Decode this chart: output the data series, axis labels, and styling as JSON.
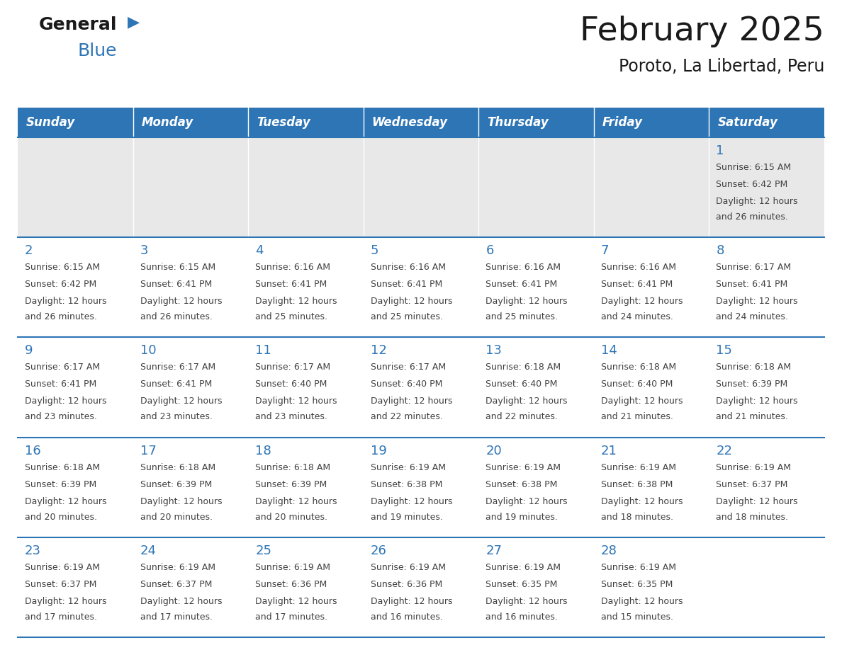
{
  "title": "February 2025",
  "subtitle": "Poroto, La Libertad, Peru",
  "header_bg": "#2E75B6",
  "header_text_color": "#FFFFFF",
  "day_names": [
    "Sunday",
    "Monday",
    "Tuesday",
    "Wednesday",
    "Thursday",
    "Friday",
    "Saturday"
  ],
  "row1_bg": "#E8E8E8",
  "row_bg": "#FFFFFF",
  "separator_color": "#2E75B6",
  "number_color": "#2E75B6",
  "text_color": "#404040",
  "logo_text1": "General",
  "logo_text2": "Blue",
  "logo_color1": "#1A1A1A",
  "logo_color2": "#2E75B6",
  "calendar": [
    [
      null,
      null,
      null,
      null,
      null,
      null,
      {
        "day": 1,
        "sunrise": "6:15 AM",
        "sunset": "6:42 PM",
        "daylight": "12 hours",
        "daylight2": "and 26 minutes."
      }
    ],
    [
      {
        "day": 2,
        "sunrise": "6:15 AM",
        "sunset": "6:42 PM",
        "daylight": "12 hours",
        "daylight2": "and 26 minutes."
      },
      {
        "day": 3,
        "sunrise": "6:15 AM",
        "sunset": "6:41 PM",
        "daylight": "12 hours",
        "daylight2": "and 26 minutes."
      },
      {
        "day": 4,
        "sunrise": "6:16 AM",
        "sunset": "6:41 PM",
        "daylight": "12 hours",
        "daylight2": "and 25 minutes."
      },
      {
        "day": 5,
        "sunrise": "6:16 AM",
        "sunset": "6:41 PM",
        "daylight": "12 hours",
        "daylight2": "and 25 minutes."
      },
      {
        "day": 6,
        "sunrise": "6:16 AM",
        "sunset": "6:41 PM",
        "daylight": "12 hours",
        "daylight2": "and 25 minutes."
      },
      {
        "day": 7,
        "sunrise": "6:16 AM",
        "sunset": "6:41 PM",
        "daylight": "12 hours",
        "daylight2": "and 24 minutes."
      },
      {
        "day": 8,
        "sunrise": "6:17 AM",
        "sunset": "6:41 PM",
        "daylight": "12 hours",
        "daylight2": "and 24 minutes."
      }
    ],
    [
      {
        "day": 9,
        "sunrise": "6:17 AM",
        "sunset": "6:41 PM",
        "daylight": "12 hours",
        "daylight2": "and 23 minutes."
      },
      {
        "day": 10,
        "sunrise": "6:17 AM",
        "sunset": "6:41 PM",
        "daylight": "12 hours",
        "daylight2": "and 23 minutes."
      },
      {
        "day": 11,
        "sunrise": "6:17 AM",
        "sunset": "6:40 PM",
        "daylight": "12 hours",
        "daylight2": "and 23 minutes."
      },
      {
        "day": 12,
        "sunrise": "6:17 AM",
        "sunset": "6:40 PM",
        "daylight": "12 hours",
        "daylight2": "and 22 minutes."
      },
      {
        "day": 13,
        "sunrise": "6:18 AM",
        "sunset": "6:40 PM",
        "daylight": "12 hours",
        "daylight2": "and 22 minutes."
      },
      {
        "day": 14,
        "sunrise": "6:18 AM",
        "sunset": "6:40 PM",
        "daylight": "12 hours",
        "daylight2": "and 21 minutes."
      },
      {
        "day": 15,
        "sunrise": "6:18 AM",
        "sunset": "6:39 PM",
        "daylight": "12 hours",
        "daylight2": "and 21 minutes."
      }
    ],
    [
      {
        "day": 16,
        "sunrise": "6:18 AM",
        "sunset": "6:39 PM",
        "daylight": "12 hours",
        "daylight2": "and 20 minutes."
      },
      {
        "day": 17,
        "sunrise": "6:18 AM",
        "sunset": "6:39 PM",
        "daylight": "12 hours",
        "daylight2": "and 20 minutes."
      },
      {
        "day": 18,
        "sunrise": "6:18 AM",
        "sunset": "6:39 PM",
        "daylight": "12 hours",
        "daylight2": "and 20 minutes."
      },
      {
        "day": 19,
        "sunrise": "6:19 AM",
        "sunset": "6:38 PM",
        "daylight": "12 hours",
        "daylight2": "and 19 minutes."
      },
      {
        "day": 20,
        "sunrise": "6:19 AM",
        "sunset": "6:38 PM",
        "daylight": "12 hours",
        "daylight2": "and 19 minutes."
      },
      {
        "day": 21,
        "sunrise": "6:19 AM",
        "sunset": "6:38 PM",
        "daylight": "12 hours",
        "daylight2": "and 18 minutes."
      },
      {
        "day": 22,
        "sunrise": "6:19 AM",
        "sunset": "6:37 PM",
        "daylight": "12 hours",
        "daylight2": "and 18 minutes."
      }
    ],
    [
      {
        "day": 23,
        "sunrise": "6:19 AM",
        "sunset": "6:37 PM",
        "daylight": "12 hours",
        "daylight2": "and 17 minutes."
      },
      {
        "day": 24,
        "sunrise": "6:19 AM",
        "sunset": "6:37 PM",
        "daylight": "12 hours",
        "daylight2": "and 17 minutes."
      },
      {
        "day": 25,
        "sunrise": "6:19 AM",
        "sunset": "6:36 PM",
        "daylight": "12 hours",
        "daylight2": "and 17 minutes."
      },
      {
        "day": 26,
        "sunrise": "6:19 AM",
        "sunset": "6:36 PM",
        "daylight": "12 hours",
        "daylight2": "and 16 minutes."
      },
      {
        "day": 27,
        "sunrise": "6:19 AM",
        "sunset": "6:35 PM",
        "daylight": "12 hours",
        "daylight2": "and 16 minutes."
      },
      {
        "day": 28,
        "sunrise": "6:19 AM",
        "sunset": "6:35 PM",
        "daylight": "12 hours",
        "daylight2": "and 15 minutes."
      },
      null
    ]
  ]
}
